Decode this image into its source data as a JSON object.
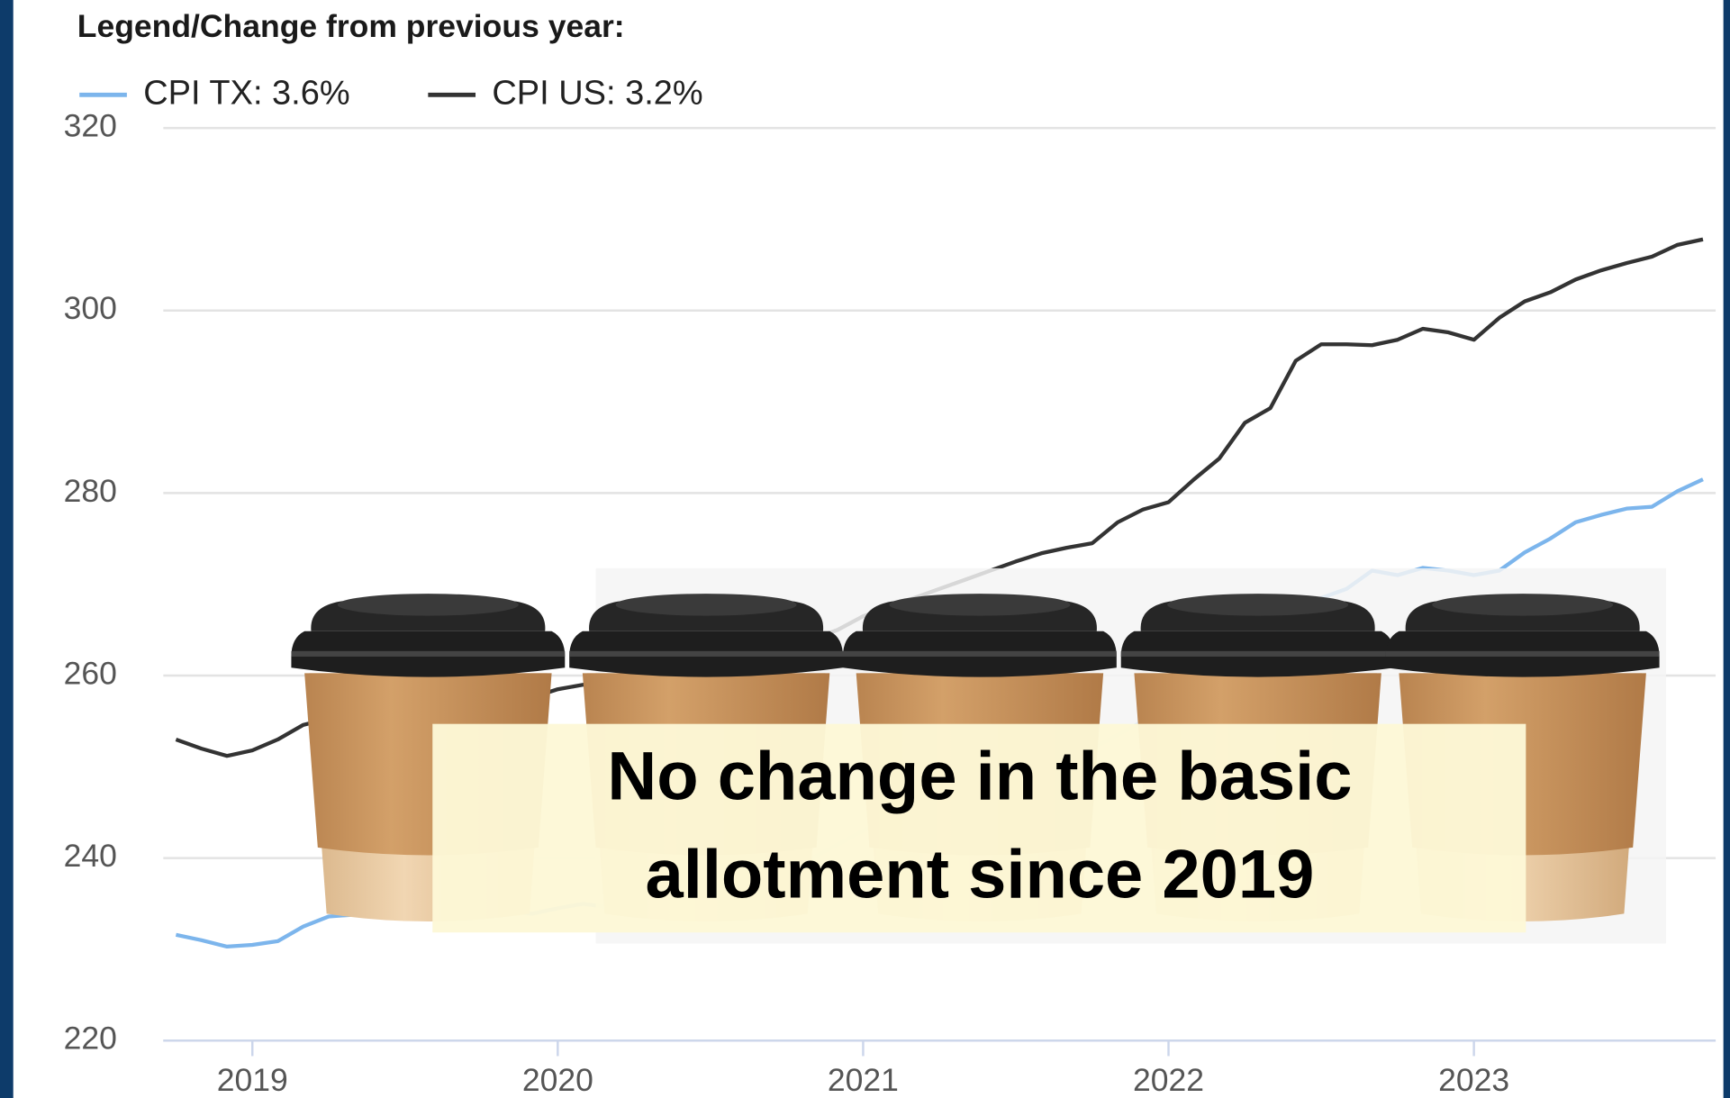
{
  "chart_data": {
    "type": "line",
    "legend_title": "Legend/Change from previous year:",
    "categories": [
      null,
      null,
      null,
      "2019",
      null,
      null,
      null,
      null,
      null,
      null,
      null,
      null,
      null,
      null,
      null,
      "2020",
      null,
      null,
      null,
      null,
      null,
      null,
      null,
      null,
      null,
      null,
      null,
      "2021",
      null,
      null,
      null,
      null,
      null,
      null,
      null,
      null,
      null,
      null,
      null,
      "2022",
      null,
      null,
      null,
      null,
      null,
      null,
      null,
      null,
      null,
      null,
      null,
      "2023",
      null,
      null,
      null,
      null,
      null,
      null,
      null,
      null,
      null
    ],
    "series": [
      {
        "name": "CPI TX: 3.6%",
        "color": "#7cb5ec",
        "values": [
          231.6,
          231.0,
          230.3,
          230.5,
          230.9,
          232.5,
          233.6,
          233.8,
          233.8,
          234.0,
          234.2,
          234.3,
          234.4,
          234.2,
          233.9,
          234.5,
          235.0,
          234.6,
          234.0,
          234.5,
          235.3,
          236.0,
          236.8,
          237.6,
          238.5,
          240.0,
          241.5,
          243.0,
          244.5,
          246.0,
          247.0,
          247.8,
          248.8,
          249.8,
          250.5,
          251.2,
          252.0,
          253.5,
          255.0,
          256.0,
          257.8,
          259.5,
          262.0,
          264.0,
          266.5,
          268.5,
          269.5,
          271.5,
          271.0,
          271.8,
          271.5,
          271.0,
          271.5,
          273.5,
          275.0,
          276.8,
          277.6,
          278.3,
          278.5,
          280.2,
          281.5
        ]
      },
      {
        "name": "CPI US: 3.2%",
        "color": "#333333",
        "values": [
          253.0,
          252.0,
          251.2,
          251.8,
          253.0,
          254.6,
          255.3,
          255.8,
          256.2,
          256.4,
          256.6,
          256.8,
          257.0,
          257.2,
          257.6,
          258.5,
          259.0,
          258.5,
          258.0,
          258.5,
          259.5,
          260.2,
          261.0,
          262.0,
          263.0,
          264.0,
          265.0,
          266.5,
          267.5,
          268.5,
          269.5,
          270.5,
          271.5,
          272.5,
          273.4,
          274.0,
          274.5,
          276.8,
          278.2,
          279.0,
          281.5,
          283.8,
          287.7,
          289.3,
          294.5,
          296.3,
          296.3,
          296.2,
          296.8,
          298.0,
          297.6,
          296.8,
          299.2,
          301.0,
          302.0,
          303.4,
          304.4,
          305.2,
          305.9,
          307.2,
          307.8
        ]
      }
    ],
    "ylim": [
      220,
      320
    ],
    "yticks": [
      220,
      240,
      260,
      280,
      300,
      320
    ],
    "grid": true,
    "annotation_lines": [
      "No change in the basic",
      "allotment since 2019"
    ]
  }
}
